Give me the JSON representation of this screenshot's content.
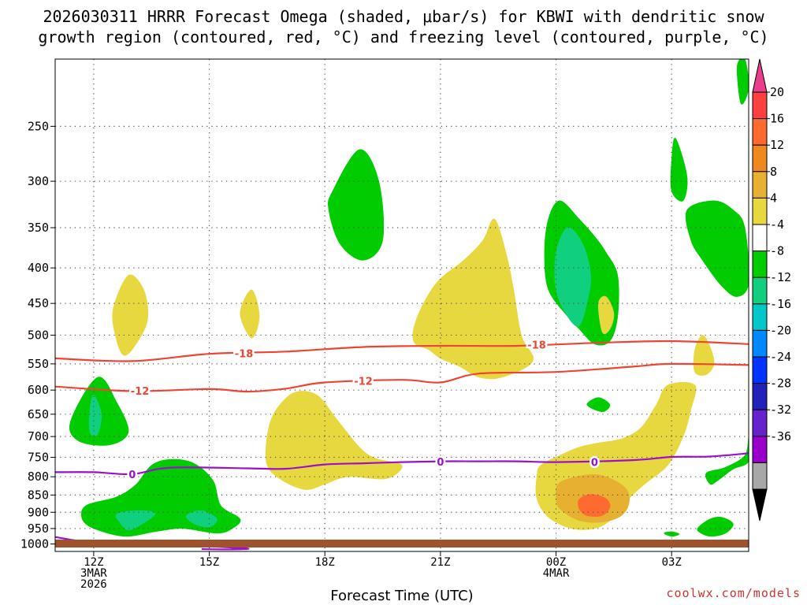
{
  "chart_data": {
    "type": "heatmap",
    "title_line1": "2026030311 HRRR Forecast Omega (shaded, μbar/s) for KBWI with dendritic snow",
    "title_line2": "growth region (contoured, red, °C) and freezing level (contoured, purple, °C)",
    "xlabel": "Forecast Time (UTC)",
    "ylabel": "",
    "y_ticks": [
      "250",
      "300",
      "350",
      "400",
      "450",
      "500",
      "550",
      "600",
      "650",
      "700",
      "750",
      "800",
      "850",
      "900",
      "950",
      "1000"
    ],
    "x_ticks": [
      {
        "hour": 12,
        "label": "12Z",
        "sub1": "3MAR",
        "sub2": "2026"
      },
      {
        "hour": 15,
        "label": "15Z",
        "sub1": "",
        "sub2": ""
      },
      {
        "hour": 18,
        "label": "18Z",
        "sub1": "",
        "sub2": ""
      },
      {
        "hour": 21,
        "label": "21Z",
        "sub1": "",
        "sub2": ""
      },
      {
        "hour": 24,
        "label": "00Z",
        "sub1": "4MAR",
        "sub2": ""
      },
      {
        "hour": 27,
        "label": "03Z",
        "sub1": "",
        "sub2": ""
      }
    ],
    "x_range_hours": [
      11,
      29
    ],
    "y_range_hpa": [
      200,
      1025
    ],
    "colorbar_labels": [
      "20",
      "16",
      "12",
      "8",
      "4",
      "-4",
      "-8",
      "-12",
      "-16",
      "-20",
      "-24",
      "-28",
      "-32",
      "-36"
    ],
    "colorbar_colors": [
      "#e83e8c",
      "#ff4040",
      "#ff6a30",
      "#f08820",
      "#e8b030",
      "#e8d840",
      "#ffffff",
      "#00cc00",
      "#10d080",
      "#00c8c8",
      "#0088ff",
      "#0033ff",
      "#2222bb",
      "#6622cc",
      "#9900cc",
      "#a8a8a8"
    ],
    "contours": [
      {
        "name": "dgz-minus18",
        "color": "#ee4433",
        "label": "-18",
        "points": [
          [
            11,
            540
          ],
          [
            13,
            545
          ],
          [
            15,
            532
          ],
          [
            17,
            528
          ],
          [
            19,
            520
          ],
          [
            21,
            518
          ],
          [
            23,
            518
          ],
          [
            25,
            513
          ],
          [
            27,
            510
          ],
          [
            29,
            515
          ]
        ],
        "label_at": [
          [
            15.9,
            531
          ],
          [
            23.5,
            516
          ]
        ]
      },
      {
        "name": "dgz-minus12",
        "color": "#ee4433",
        "label": "-12",
        "points": [
          [
            11,
            593
          ],
          [
            13,
            602
          ],
          [
            15,
            598
          ],
          [
            16,
            603
          ],
          [
            17,
            597
          ],
          [
            18,
            585
          ],
          [
            20,
            580
          ],
          [
            21,
            585
          ],
          [
            22,
            568
          ],
          [
            24,
            565
          ],
          [
            26,
            555
          ],
          [
            27,
            550
          ],
          [
            29,
            552
          ]
        ],
        "label_at": [
          [
            13.2,
            601
          ],
          [
            19.0,
            582
          ]
        ]
      },
      {
        "name": "freezing-level",
        "color": "#9911cc",
        "label": "0",
        "points": [
          [
            11,
            788
          ],
          [
            12,
            788
          ],
          [
            13,
            793
          ],
          [
            14,
            776
          ],
          [
            16,
            778
          ],
          [
            17,
            779
          ],
          [
            18,
            768
          ],
          [
            19,
            765
          ],
          [
            20,
            762
          ],
          [
            21,
            760
          ],
          [
            22,
            760
          ],
          [
            23,
            760
          ],
          [
            24,
            762
          ],
          [
            26,
            757
          ],
          [
            27,
            749
          ],
          [
            28,
            748
          ],
          [
            29,
            740
          ]
        ],
        "label_at": [
          [
            13.0,
            793
          ],
          [
            21.0,
            761
          ],
          [
            25.0,
            762
          ]
        ]
      },
      {
        "name": "freezing-level-low",
        "color": "#9911cc",
        "label": "",
        "points": [
          [
            11,
            977
          ],
          [
            12,
            995
          ],
          [
            14,
            1003
          ],
          [
            15,
            1008
          ],
          [
            16,
            1015
          ],
          [
            15.6,
            1018
          ],
          [
            14.8,
            1017
          ]
        ],
        "label_at": []
      }
    ],
    "shaded_regions": [
      {
        "name": "green-12z-low",
        "color": "#00cc00",
        "points": [
          [
            11.4,
            665
          ],
          [
            12.1,
            575
          ],
          [
            12.6,
            625
          ],
          [
            12.9,
            690
          ],
          [
            12.4,
            720
          ],
          [
            11.6,
            710
          ]
        ]
      },
      {
        "name": "teal-12z-low",
        "color": "#10d080",
        "points": [
          [
            11.9,
            640
          ],
          [
            12.0,
            610
          ],
          [
            12.2,
            650
          ],
          [
            12.1,
            695
          ],
          [
            11.9,
            690
          ]
        ]
      },
      {
        "name": "yellow-13z-upper",
        "color": "#e8d840",
        "points": [
          [
            12.5,
            460
          ],
          [
            12.9,
            410
          ],
          [
            13.3,
            430
          ],
          [
            13.4,
            475
          ],
          [
            13.1,
            515
          ],
          [
            12.8,
            535
          ],
          [
            12.6,
            510
          ]
        ]
      },
      {
        "name": "green-13z-low",
        "color": "#00cc00",
        "points": [
          [
            11.8,
            880
          ],
          [
            12.6,
            855
          ],
          [
            13.1,
            820
          ],
          [
            13.5,
            770
          ],
          [
            14.0,
            755
          ],
          [
            14.6,
            765
          ],
          [
            15.1,
            810
          ],
          [
            15.3,
            880
          ],
          [
            15.8,
            920
          ],
          [
            15.6,
            950
          ],
          [
            15.2,
            965
          ],
          [
            14.3,
            950
          ],
          [
            13.6,
            960
          ],
          [
            12.8,
            975
          ],
          [
            12.0,
            950
          ],
          [
            11.7,
            920
          ]
        ]
      },
      {
        "name": "teal-13z-low",
        "color": "#10d080",
        "points": [
          [
            12.6,
            905
          ],
          [
            13.2,
            895
          ],
          [
            13.6,
            905
          ],
          [
            13.2,
            940
          ],
          [
            12.9,
            955
          ],
          [
            12.7,
            935
          ]
        ]
      },
      {
        "name": "teal-14z-low",
        "color": "#10d080",
        "points": [
          [
            14.4,
            910
          ],
          [
            14.8,
            895
          ],
          [
            15.2,
            920
          ],
          [
            15.0,
            945
          ],
          [
            14.6,
            935
          ]
        ]
      },
      {
        "name": "yellow-16z-small",
        "color": "#e8d840",
        "points": [
          [
            15.8,
            465
          ],
          [
            16.1,
            430
          ],
          [
            16.3,
            470
          ],
          [
            16.1,
            505
          ]
        ]
      },
      {
        "name": "yellow-17z-mid",
        "color": "#e8d840",
        "points": [
          [
            16.7,
            645
          ],
          [
            17.2,
            605
          ],
          [
            17.8,
            610
          ],
          [
            18.3,
            660
          ],
          [
            18.9,
            725
          ],
          [
            19.3,
            752
          ],
          [
            20.0,
            770
          ],
          [
            19.6,
            805
          ],
          [
            18.6,
            800
          ],
          [
            18.0,
            820
          ],
          [
            17.5,
            835
          ],
          [
            16.9,
            810
          ],
          [
            16.5,
            770
          ],
          [
            16.5,
            700
          ]
        ]
      },
      {
        "name": "green-19z-upper",
        "color": "#00cc00",
        "points": [
          [
            18.2,
            310
          ],
          [
            18.9,
            270
          ],
          [
            19.4,
            300
          ],
          [
            19.5,
            365
          ],
          [
            19.0,
            390
          ],
          [
            18.4,
            370
          ],
          [
            18.1,
            330
          ]
        ]
      },
      {
        "name": "yellow-22z",
        "color": "#e8d840",
        "points": [
          [
            20.4,
            470
          ],
          [
            20.9,
            420
          ],
          [
            21.6,
            390
          ],
          [
            22.1,
            365
          ],
          [
            22.4,
            340
          ],
          [
            22.7,
            380
          ],
          [
            22.9,
            430
          ],
          [
            23.1,
            500
          ],
          [
            23.4,
            545
          ],
          [
            22.6,
            575
          ],
          [
            22.0,
            575
          ],
          [
            21.5,
            555
          ],
          [
            21.0,
            540
          ],
          [
            20.7,
            525
          ],
          [
            20.3,
            510
          ]
        ]
      },
      {
        "name": "green-23z-upper",
        "color": "#00cc00",
        "points": [
          [
            23.8,
            340
          ],
          [
            24.1,
            320
          ],
          [
            24.6,
            340
          ],
          [
            25.0,
            360
          ],
          [
            25.3,
            380
          ],
          [
            25.6,
            410
          ],
          [
            25.6,
            470
          ],
          [
            25.4,
            510
          ],
          [
            25.0,
            515
          ],
          [
            24.6,
            490
          ],
          [
            24.3,
            470
          ],
          [
            23.8,
            430
          ],
          [
            23.7,
            380
          ]
        ]
      },
      {
        "name": "teal-23z-upper",
        "color": "#10d080",
        "points": [
          [
            24.0,
            380
          ],
          [
            24.3,
            350
          ],
          [
            24.7,
            370
          ],
          [
            24.9,
            410
          ],
          [
            24.8,
            450
          ],
          [
            24.6,
            485
          ],
          [
            24.3,
            470
          ],
          [
            24.0,
            430
          ]
        ]
      },
      {
        "name": "yellow-25z-small",
        "color": "#e8d840",
        "points": [
          [
            25.1,
            450
          ],
          [
            25.3,
            440
          ],
          [
            25.5,
            465
          ],
          [
            25.4,
            490
          ],
          [
            25.2,
            495
          ]
        ]
      },
      {
        "name": "green-25z-small",
        "color": "#00cc00",
        "points": [
          [
            24.8,
            630
          ],
          [
            25.1,
            615
          ],
          [
            25.4,
            630
          ],
          [
            25.2,
            645
          ]
        ]
      },
      {
        "name": "yellow-25z-low",
        "color": "#e8d840",
        "points": [
          [
            24.1,
            745
          ],
          [
            24.6,
            725
          ],
          [
            25.1,
            715
          ],
          [
            25.7,
            705
          ],
          [
            26.2,
            680
          ],
          [
            26.6,
            630
          ],
          [
            26.9,
            590
          ],
          [
            27.6,
            590
          ],
          [
            27.5,
            640
          ],
          [
            27.3,
            700
          ],
          [
            26.9,
            770
          ],
          [
            26.3,
            820
          ],
          [
            25.8,
            870
          ],
          [
            25.4,
            925
          ],
          [
            25.0,
            950
          ],
          [
            24.4,
            950
          ],
          [
            23.8,
            915
          ],
          [
            23.5,
            860
          ],
          [
            23.5,
            800
          ],
          [
            23.6,
            770
          ]
        ]
      },
      {
        "name": "amber-25z-low",
        "color": "#e8b030",
        "points": [
          [
            24.1,
            815
          ],
          [
            24.8,
            795
          ],
          [
            25.3,
            800
          ],
          [
            25.8,
            830
          ],
          [
            25.9,
            870
          ],
          [
            25.7,
            910
          ],
          [
            25.2,
            930
          ],
          [
            24.6,
            925
          ],
          [
            24.1,
            890
          ],
          [
            24.0,
            855
          ]
        ]
      },
      {
        "name": "orange-25z-core",
        "color": "#ff6a30",
        "points": [
          [
            24.6,
            862
          ],
          [
            24.9,
            848
          ],
          [
            25.3,
            860
          ],
          [
            25.4,
            885
          ],
          [
            25.2,
            910
          ],
          [
            24.8,
            910
          ],
          [
            24.6,
            890
          ]
        ]
      },
      {
        "name": "green-27z-tiny",
        "color": "#00cc00",
        "points": [
          [
            26.8,
            965
          ],
          [
            27.0,
            960
          ],
          [
            27.2,
            968
          ],
          [
            27.0,
            975
          ]
        ]
      },
      {
        "name": "yellow-27z-mid",
        "color": "#e8d840",
        "points": [
          [
            27.6,
            525
          ],
          [
            27.8,
            500
          ],
          [
            28.0,
            520
          ],
          [
            28.1,
            550
          ],
          [
            27.9,
            570
          ],
          [
            27.6,
            565
          ]
        ]
      },
      {
        "name": "green-27z-upper",
        "color": "#00cc00",
        "points": [
          [
            27.0,
            280
          ],
          [
            27.1,
            260
          ],
          [
            27.4,
            295
          ],
          [
            27.3,
            320
          ],
          [
            27.0,
            310
          ]
        ]
      },
      {
        "name": "green-28z-upper",
        "color": "#00cc00",
        "points": [
          [
            27.4,
            330
          ],
          [
            28.1,
            320
          ],
          [
            28.6,
            330
          ],
          [
            28.9,
            350
          ],
          [
            29.0,
            420
          ],
          [
            28.7,
            440
          ],
          [
            28.3,
            425
          ],
          [
            27.8,
            390
          ],
          [
            27.5,
            365
          ]
        ]
      },
      {
        "name": "green-29z-top",
        "color": "#00cc00",
        "points": [
          [
            28.7,
            205
          ],
          [
            28.9,
            200
          ],
          [
            29.0,
            220
          ],
          [
            28.8,
            232
          ]
        ]
      },
      {
        "name": "green-29z-low",
        "color": "#00cc00",
        "points": [
          [
            27.9,
            790
          ],
          [
            28.4,
            775
          ],
          [
            28.9,
            745
          ],
          [
            29.0,
            700
          ],
          [
            29.0,
            760
          ],
          [
            28.6,
            780
          ],
          [
            28.2,
            810
          ],
          [
            28.0,
            820
          ]
        ]
      },
      {
        "name": "green-28z-bottom",
        "color": "#00cc00",
        "points": [
          [
            27.7,
            945
          ],
          [
            28.0,
            920
          ],
          [
            28.3,
            915
          ],
          [
            28.6,
            935
          ],
          [
            28.4,
            965
          ],
          [
            28.0,
            975
          ],
          [
            27.7,
            960
          ]
        ]
      }
    ],
    "surface_color": "#a0522d"
  },
  "credit": "coolwx.com/models"
}
